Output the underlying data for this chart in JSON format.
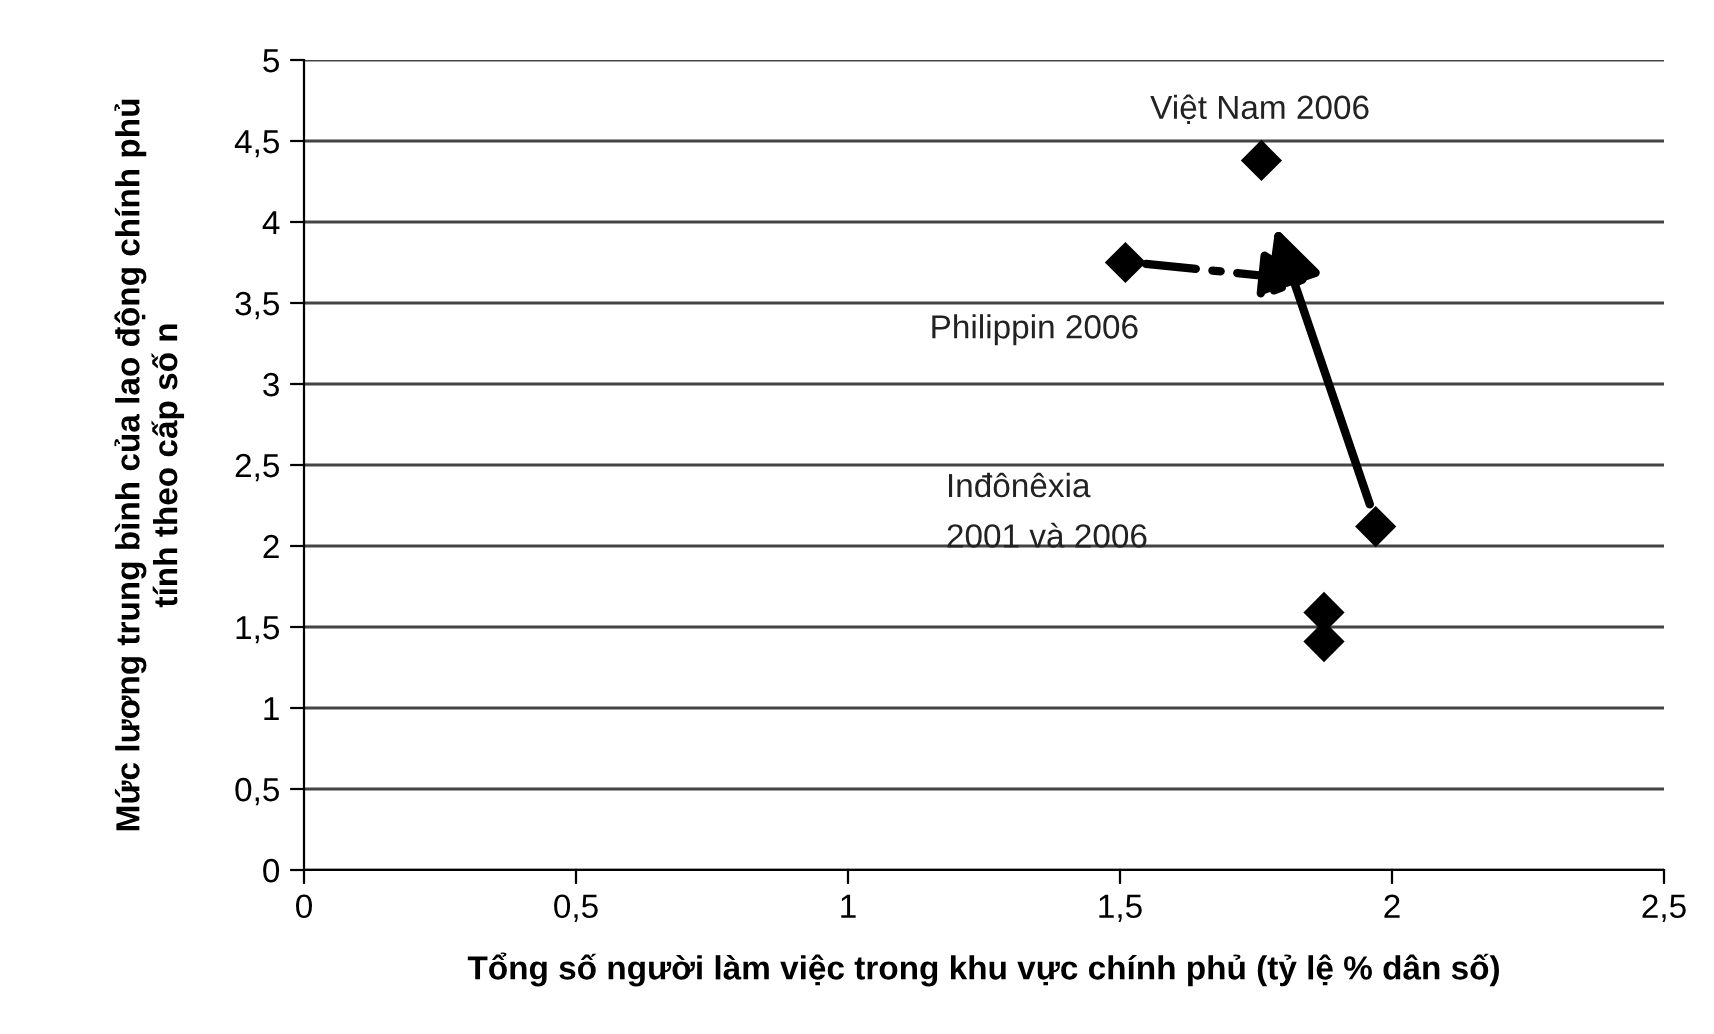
{
  "chart_data": {
    "type": "scatter",
    "xlabel": "Tổng số người làm việc trong khu vực chính phủ (tỷ lệ % dân số)",
    "ylabel": "Mức lương trung bình của lao động chính phủ\ntính theo cấp số n",
    "x": [
      1.51,
      1.76,
      1.97,
      1.875,
      1.875
    ],
    "series": [
      {
        "color": "#000000",
        "values": [
          3.75,
          4.38,
          2.12,
          1.59,
          1.41
        ]
      }
    ],
    "marker": "diamond",
    "grid": "y",
    "xlim": [
      0,
      2.5
    ],
    "xticks": [
      0,
      {
        "value": 0.5,
        "label": "0,5"
      },
      1,
      {
        "value": 1.5,
        "label": "1,5"
      },
      2,
      {
        "value": 2.5,
        "label": "2,5"
      }
    ],
    "ylim": [
      0,
      5
    ],
    "yticks": [
      0,
      {
        "value": 0.5,
        "label": "0,5"
      },
      1,
      {
        "value": 1.5,
        "label": "1,5"
      },
      2,
      {
        "value": 2.5,
        "label": "2,5"
      },
      3,
      {
        "value": 3.5,
        "label": "3,5"
      },
      4,
      {
        "value": 4.5,
        "label": "4,5"
      },
      5
    ],
    "annotations": [
      "Việt Nam 2006",
      "Philippin 2006",
      "Inđônêxia\n2001 và 2006"
    ]
  }
}
